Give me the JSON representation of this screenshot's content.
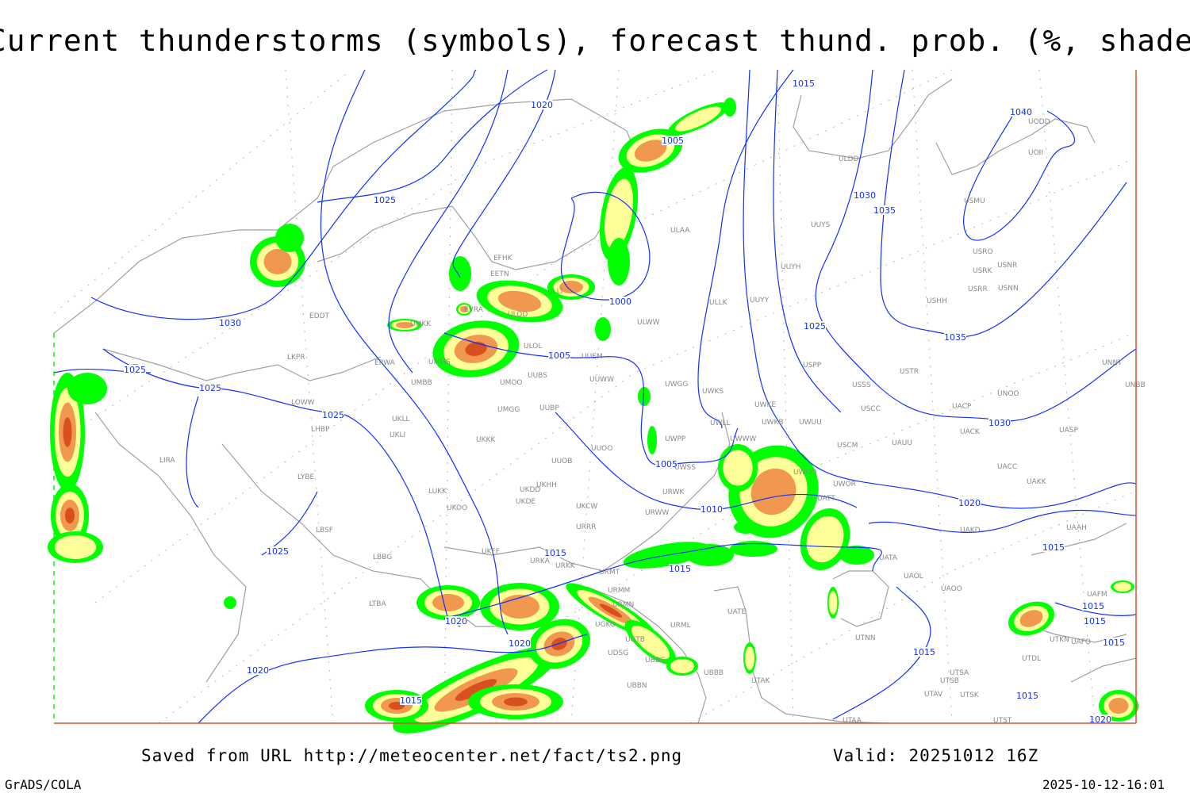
{
  "title": "Current thunderstorms (symbols), forecast thund. prob. (%, shaded)",
  "footer": {
    "saved_from": "Saved from URL http://meteocenter.net/fact/ts2.png",
    "valid": "Valid: 20251012 16Z",
    "software": "GrADS/COLA",
    "generated": "2025-10-12-16:01"
  },
  "colors": {
    "isobar": "#1030ff",
    "coastline": "#a0a0a0",
    "prob_low": "#00ff00",
    "prob_mid": "#ffff99",
    "prob_high": "#f09850",
    "prob_very_high": "#d84f20",
    "frame": "#d05030"
  },
  "isobar_labels": [
    "1030",
    "1025",
    "1025",
    "1025",
    "1025",
    "1025",
    "1020",
    "1005",
    "1000",
    "1005",
    "1005",
    "1010",
    "1015",
    "1015",
    "1020",
    "1020",
    "1020",
    "1015",
    "1015",
    "1030",
    "1035",
    "1035",
    "1040",
    "1025",
    "1030",
    "1020",
    "1015",
    "1015",
    "1015",
    "1015",
    "1015",
    "1020",
    "1015"
  ],
  "stations": [
    "EFHK",
    "EETN",
    "ULLI",
    "EVRA",
    "ULOD",
    "UMKK",
    "EPWA",
    "UMMS",
    "ULOL",
    "UUEM",
    "UUBS",
    "UMOO",
    "UMBB",
    "UUWW",
    "UWGG",
    "UWKS",
    "UMGG",
    "UUBP",
    "UKLL",
    "UKLI",
    "UKKK",
    "UUOO",
    "UWPP",
    "UUOB",
    "UWSS",
    "UKHH",
    "UKDD",
    "UKDE",
    "UKOO",
    "LUKK",
    "UKCW",
    "URWK",
    "URWW",
    "URRR",
    "UKFF",
    "URKA",
    "URKK",
    "URMT",
    "URMM",
    "URMN",
    "URML",
    "UGKO",
    "UGTB",
    "UDSG",
    "UBBG",
    "UBBN",
    "UBBB",
    "UATE",
    "UTAK",
    "UTNN",
    "UATA",
    "UAOL",
    "UAOO",
    "UAKD",
    "UAAH",
    "UAKK",
    "UACC",
    "UAUU",
    "USCM",
    "UWOR",
    "UWOO",
    "UATT",
    "UWKE",
    "UWKB",
    "UWUU",
    "UWLL",
    "UWWW",
    "USCC",
    "UACP",
    "UNOO",
    "UACK",
    "UASP",
    "USSS",
    "USTR",
    "USPP",
    "UNNT",
    "UNBB",
    "EDDT",
    "LKPR",
    "LOWW",
    "LHBP",
    "LIRA",
    "LYBE",
    "LBSF",
    "LBBG",
    "LTBA",
    "ULAA",
    "ULWW",
    "ULLK",
    "UUYY",
    "UUYH",
    "ULDD",
    "UUYS",
    "USMU",
    "USRO",
    "USRK",
    "USNR",
    "USRR",
    "USNN",
    "USHH",
    "UODD",
    "UOII",
    "UTSA",
    "UTSB",
    "UTAV",
    "UTSK",
    "UTST",
    "UTAA",
    "UAFM",
    "UTKN",
    "UAFO",
    "UTDL"
  ]
}
